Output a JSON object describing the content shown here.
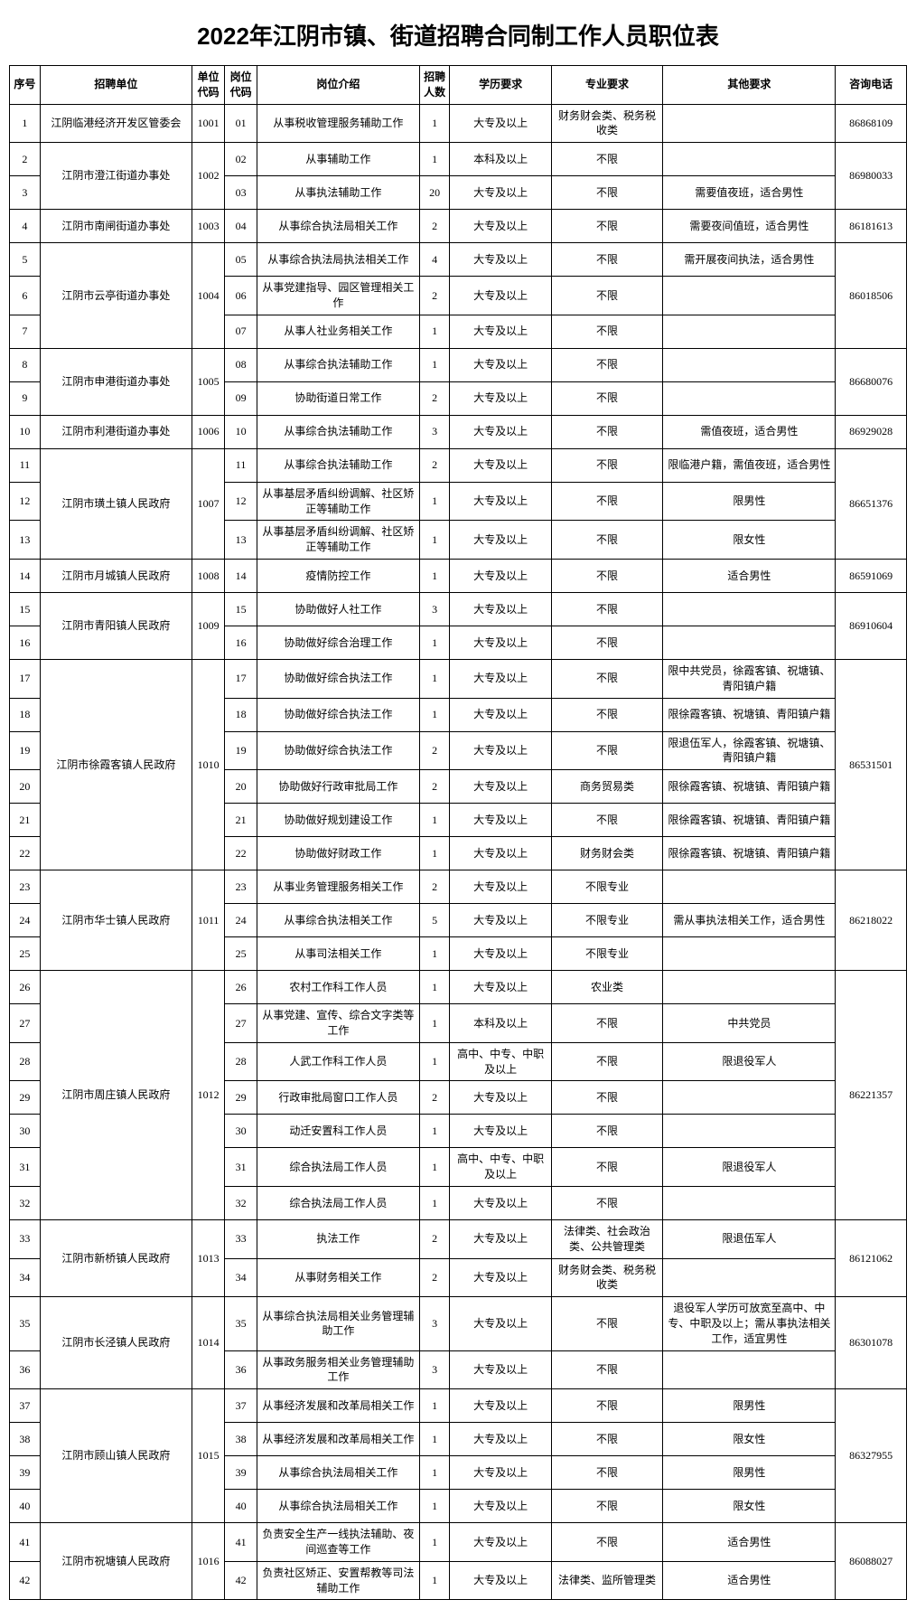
{
  "title": "2022年江阴市镇、街道招聘合同制工作人员职位表",
  "headers": {
    "seq": "序号",
    "unit": "招聘单位",
    "unitCode": "单位代码",
    "posCode": "岗位代码",
    "desc": "岗位介绍",
    "num": "招聘人数",
    "edu": "学历要求",
    "major": "专业要求",
    "other": "其他要求",
    "phone": "咨询电话"
  },
  "units": [
    {
      "name": "江阴临港经济开发区管委会",
      "code": "1001",
      "phone": "86868109",
      "rows": [
        {
          "seq": "1",
          "pcode": "01",
          "desc": "从事税收管理服务辅助工作",
          "num": "1",
          "edu": "大专及以上",
          "major": "财务财会类、税务税收类",
          "other": ""
        }
      ]
    },
    {
      "name": "江阴市澄江街道办事处",
      "code": "1002",
      "phone": "86980033",
      "rows": [
        {
          "seq": "2",
          "pcode": "02",
          "desc": "从事辅助工作",
          "num": "1",
          "edu": "本科及以上",
          "major": "不限",
          "other": ""
        },
        {
          "seq": "3",
          "pcode": "03",
          "desc": "从事执法辅助工作",
          "num": "20",
          "edu": "大专及以上",
          "major": "不限",
          "other": "需要值夜班，适合男性"
        }
      ]
    },
    {
      "name": "江阴市南闸街道办事处",
      "code": "1003",
      "phone": "86181613",
      "rows": [
        {
          "seq": "4",
          "pcode": "04",
          "desc": "从事综合执法局相关工作",
          "num": "2",
          "edu": "大专及以上",
          "major": "不限",
          "other": "需要夜间值班，适合男性"
        }
      ]
    },
    {
      "name": "江阴市云亭街道办事处",
      "code": "1004",
      "phone": "86018506",
      "rows": [
        {
          "seq": "5",
          "pcode": "05",
          "desc": "从事综合执法局执法相关工作",
          "num": "4",
          "edu": "大专及以上",
          "major": "不限",
          "other": "需开展夜间执法，适合男性"
        },
        {
          "seq": "6",
          "pcode": "06",
          "desc": "从事党建指导、园区管理相关工作",
          "num": "2",
          "edu": "大专及以上",
          "major": "不限",
          "other": ""
        },
        {
          "seq": "7",
          "pcode": "07",
          "desc": "从事人社业务相关工作",
          "num": "1",
          "edu": "大专及以上",
          "major": "不限",
          "other": ""
        }
      ]
    },
    {
      "name": "江阴市申港街道办事处",
      "code": "1005",
      "phone": "86680076",
      "rows": [
        {
          "seq": "8",
          "pcode": "08",
          "desc": "从事综合执法辅助工作",
          "num": "1",
          "edu": "大专及以上",
          "major": "不限",
          "other": ""
        },
        {
          "seq": "9",
          "pcode": "09",
          "desc": "协助街道日常工作",
          "num": "2",
          "edu": "大专及以上",
          "major": "不限",
          "other": ""
        }
      ]
    },
    {
      "name": "江阴市利港街道办事处",
      "code": "1006",
      "phone": "86929028",
      "rows": [
        {
          "seq": "10",
          "pcode": "10",
          "desc": "从事综合执法辅助工作",
          "num": "3",
          "edu": "大专及以上",
          "major": "不限",
          "other": "需值夜班，适合男性"
        }
      ]
    },
    {
      "name": "江阴市璜土镇人民政府",
      "code": "1007",
      "phone": "86651376",
      "rows": [
        {
          "seq": "11",
          "pcode": "11",
          "desc": "从事综合执法辅助工作",
          "num": "2",
          "edu": "大专及以上",
          "major": "不限",
          "other": "限临港户籍，需值夜班，适合男性"
        },
        {
          "seq": "12",
          "pcode": "12",
          "desc": "从事基层矛盾纠纷调解、社区矫正等辅助工作",
          "num": "1",
          "edu": "大专及以上",
          "major": "不限",
          "other": "限男性"
        },
        {
          "seq": "13",
          "pcode": "13",
          "desc": "从事基层矛盾纠纷调解、社区矫正等辅助工作",
          "num": "1",
          "edu": "大专及以上",
          "major": "不限",
          "other": "限女性"
        }
      ]
    },
    {
      "name": "江阴市月城镇人民政府",
      "code": "1008",
      "phone": "86591069",
      "rows": [
        {
          "seq": "14",
          "pcode": "14",
          "desc": "疫情防控工作",
          "num": "1",
          "edu": "大专及以上",
          "major": "不限",
          "other": "适合男性"
        }
      ]
    },
    {
      "name": "江阴市青阳镇人民政府",
      "code": "1009",
      "phone": "86910604",
      "rows": [
        {
          "seq": "15",
          "pcode": "15",
          "desc": "协助做好人社工作",
          "num": "3",
          "edu": "大专及以上",
          "major": "不限",
          "other": ""
        },
        {
          "seq": "16",
          "pcode": "16",
          "desc": "协助做好综合治理工作",
          "num": "1",
          "edu": "大专及以上",
          "major": "不限",
          "other": ""
        }
      ]
    },
    {
      "name": "江阴市徐霞客镇人民政府",
      "code": "1010",
      "phone": "86531501",
      "rows": [
        {
          "seq": "17",
          "pcode": "17",
          "desc": "协助做好综合执法工作",
          "num": "1",
          "edu": "大专及以上",
          "major": "不限",
          "other": "限中共党员，徐霞客镇、祝塘镇、青阳镇户籍"
        },
        {
          "seq": "18",
          "pcode": "18",
          "desc": "协助做好综合执法工作",
          "num": "1",
          "edu": "大专及以上",
          "major": "不限",
          "other": "限徐霞客镇、祝塘镇、青阳镇户籍"
        },
        {
          "seq": "19",
          "pcode": "19",
          "desc": "协助做好综合执法工作",
          "num": "2",
          "edu": "大专及以上",
          "major": "不限",
          "other": "限退伍军人，徐霞客镇、祝塘镇、青阳镇户籍"
        },
        {
          "seq": "20",
          "pcode": "20",
          "desc": "协助做好行政审批局工作",
          "num": "2",
          "edu": "大专及以上",
          "major": "商务贸易类",
          "other": "限徐霞客镇、祝塘镇、青阳镇户籍"
        },
        {
          "seq": "21",
          "pcode": "21",
          "desc": "协助做好规划建设工作",
          "num": "1",
          "edu": "大专及以上",
          "major": "不限",
          "other": "限徐霞客镇、祝塘镇、青阳镇户籍"
        },
        {
          "seq": "22",
          "pcode": "22",
          "desc": "协助做好财政工作",
          "num": "1",
          "edu": "大专及以上",
          "major": "财务财会类",
          "other": "限徐霞客镇、祝塘镇、青阳镇户籍"
        }
      ]
    },
    {
      "name": "江阴市华士镇人民政府",
      "code": "1011",
      "phone": "86218022",
      "rows": [
        {
          "seq": "23",
          "pcode": "23",
          "desc": "从事业务管理服务相关工作",
          "num": "2",
          "edu": "大专及以上",
          "major": "不限专业",
          "other": ""
        },
        {
          "seq": "24",
          "pcode": "24",
          "desc": "从事综合执法相关工作",
          "num": "5",
          "edu": "大专及以上",
          "major": "不限专业",
          "other": "需从事执法相关工作，适合男性"
        },
        {
          "seq": "25",
          "pcode": "25",
          "desc": "从事司法相关工作",
          "num": "1",
          "edu": "大专及以上",
          "major": "不限专业",
          "other": ""
        }
      ]
    },
    {
      "name": "江阴市周庄镇人民政府",
      "code": "1012",
      "phone": "86221357",
      "rows": [
        {
          "seq": "26",
          "pcode": "26",
          "desc": "农村工作科工作人员",
          "num": "1",
          "edu": "大专及以上",
          "major": "农业类",
          "other": ""
        },
        {
          "seq": "27",
          "pcode": "27",
          "desc": "从事党建、宣传、综合文字类等工作",
          "num": "1",
          "edu": "本科及以上",
          "major": "不限",
          "other": "中共党员"
        },
        {
          "seq": "28",
          "pcode": "28",
          "desc": "人武工作科工作人员",
          "num": "1",
          "edu": "高中、中专、中职及以上",
          "major": "不限",
          "other": "限退役军人"
        },
        {
          "seq": "29",
          "pcode": "29",
          "desc": "行政审批局窗口工作人员",
          "num": "2",
          "edu": "大专及以上",
          "major": "不限",
          "other": ""
        },
        {
          "seq": "30",
          "pcode": "30",
          "desc": "动迁安置科工作人员",
          "num": "1",
          "edu": "大专及以上",
          "major": "不限",
          "other": ""
        },
        {
          "seq": "31",
          "pcode": "31",
          "desc": "综合执法局工作人员",
          "num": "1",
          "edu": "高中、中专、中职及以上",
          "major": "不限",
          "other": "限退役军人"
        },
        {
          "seq": "32",
          "pcode": "32",
          "desc": "综合执法局工作人员",
          "num": "1",
          "edu": "大专及以上",
          "major": "不限",
          "other": ""
        }
      ]
    },
    {
      "name": "江阴市新桥镇人民政府",
      "code": "1013",
      "phone": "86121062",
      "rows": [
        {
          "seq": "33",
          "pcode": "33",
          "desc": "执法工作",
          "num": "2",
          "edu": "大专及以上",
          "major": "法律类、社会政治类、公共管理类",
          "other": "限退伍军人"
        },
        {
          "seq": "34",
          "pcode": "34",
          "desc": "从事财务相关工作",
          "num": "2",
          "edu": "大专及以上",
          "major": "财务财会类、税务税收类",
          "other": ""
        }
      ]
    },
    {
      "name": "江阴市长泾镇人民政府",
      "code": "1014",
      "phone": "86301078",
      "rows": [
        {
          "seq": "35",
          "pcode": "35",
          "desc": "从事综合执法局相关业务管理辅助工作",
          "num": "3",
          "edu": "大专及以上",
          "major": "不限",
          "other": "退役军人学历可放宽至高中、中专、中职及以上；需从事执法相关工作，适宜男性"
        },
        {
          "seq": "36",
          "pcode": "36",
          "desc": "从事政务服务相关业务管理辅助工作",
          "num": "3",
          "edu": "大专及以上",
          "major": "不限",
          "other": ""
        }
      ]
    },
    {
      "name": "江阴市顾山镇人民政府",
      "code": "1015",
      "phone": "86327955",
      "rows": [
        {
          "seq": "37",
          "pcode": "37",
          "desc": "从事经济发展和改革局相关工作",
          "num": "1",
          "edu": "大专及以上",
          "major": "不限",
          "other": "限男性"
        },
        {
          "seq": "38",
          "pcode": "38",
          "desc": "从事经济发展和改革局相关工作",
          "num": "1",
          "edu": "大专及以上",
          "major": "不限",
          "other": "限女性"
        },
        {
          "seq": "39",
          "pcode": "39",
          "desc": "从事综合执法局相关工作",
          "num": "1",
          "edu": "大专及以上",
          "major": "不限",
          "other": "限男性"
        },
        {
          "seq": "40",
          "pcode": "40",
          "desc": "从事综合执法局相关工作",
          "num": "1",
          "edu": "大专及以上",
          "major": "不限",
          "other": "限女性"
        }
      ]
    },
    {
      "name": "江阴市祝塘镇人民政府",
      "code": "1016",
      "phone": "86088027",
      "rows": [
        {
          "seq": "41",
          "pcode": "41",
          "desc": "负责安全生产一线执法辅助、夜间巡查等工作",
          "num": "1",
          "edu": "大专及以上",
          "major": "不限",
          "other": "适合男性"
        },
        {
          "seq": "42",
          "pcode": "42",
          "desc": "负责社区矫正、安置帮教等司法辅助工作",
          "num": "1",
          "edu": "大专及以上",
          "major": "法律类、监所管理类",
          "other": "适合男性"
        }
      ]
    }
  ]
}
